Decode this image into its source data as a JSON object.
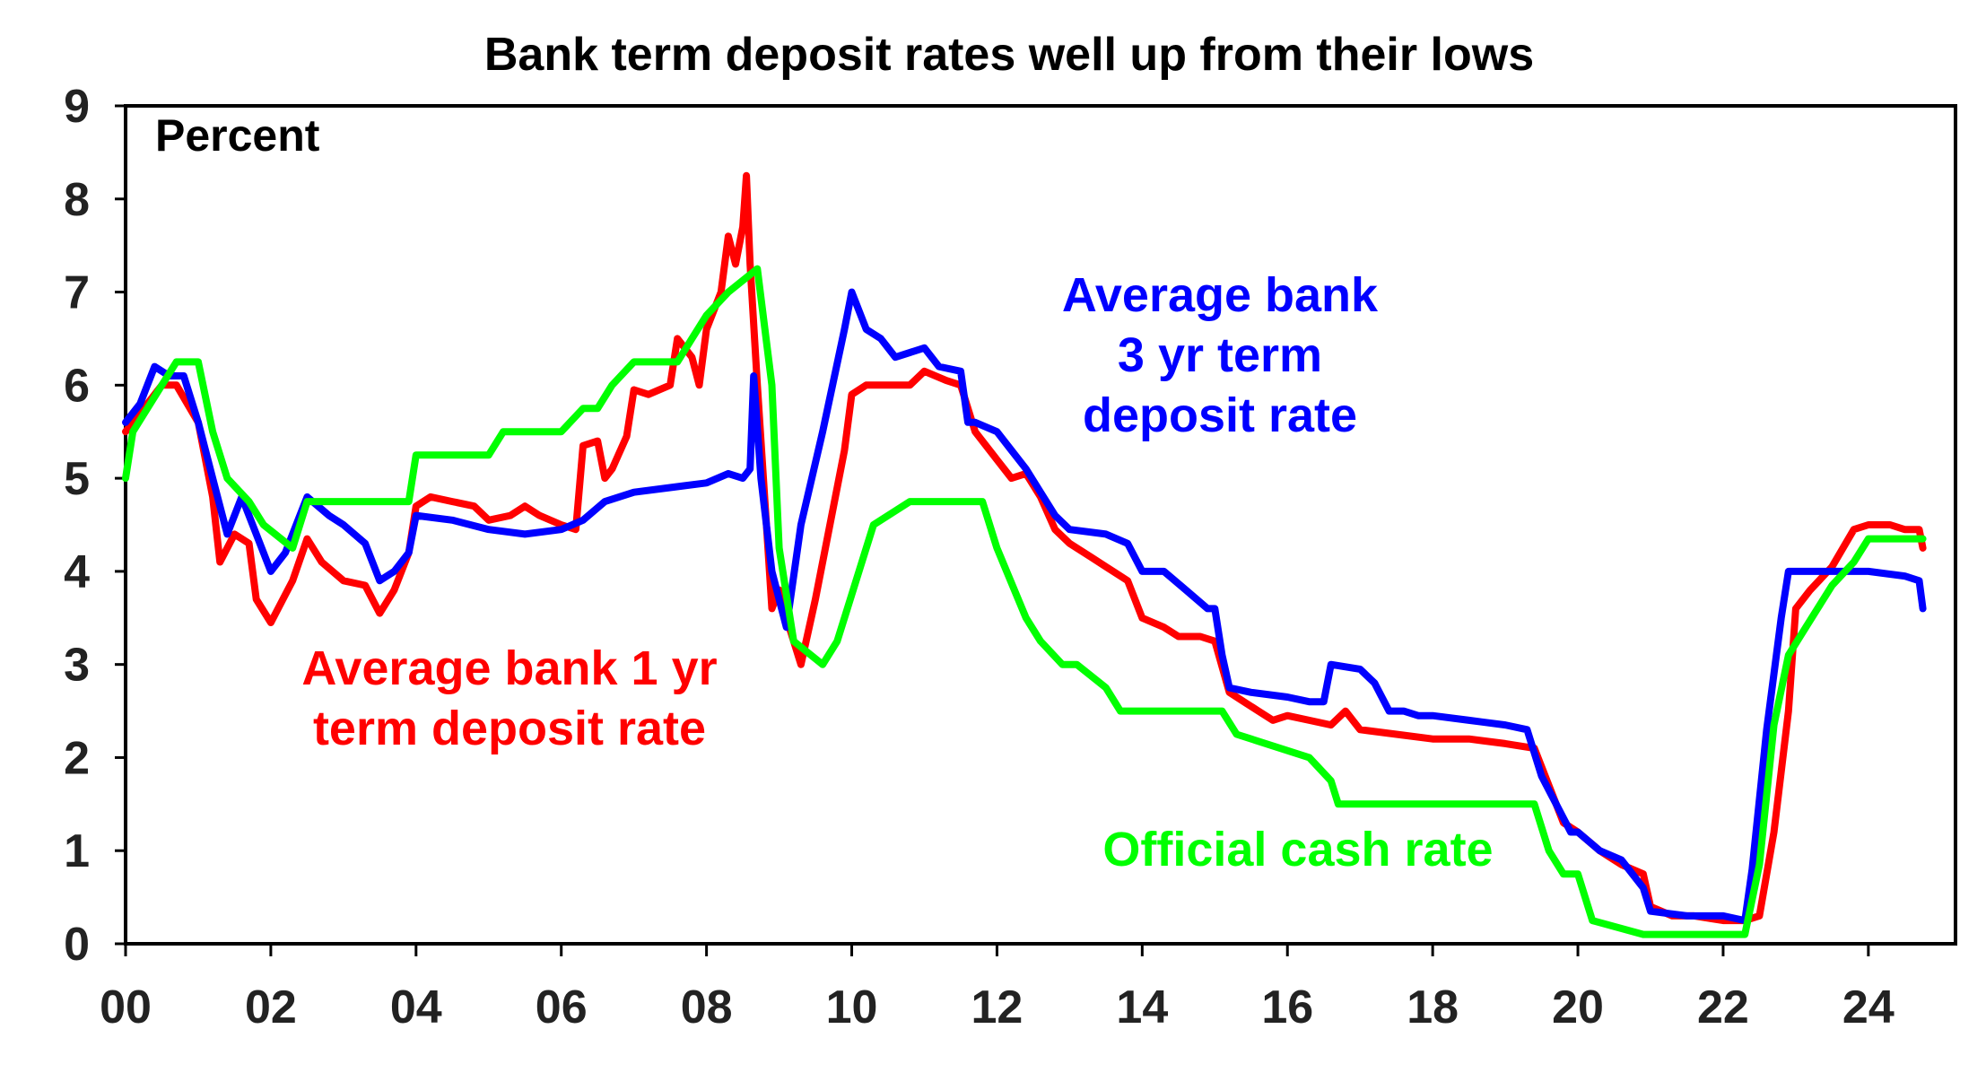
{
  "chart_data": {
    "type": "line",
    "title": "Bank term deposit rates well up from their lows",
    "unit_label": "Percent",
    "xlabel": "",
    "ylabel": "",
    "xlim": [
      2000,
      2025.2
    ],
    "ylim": [
      0,
      9
    ],
    "x_ticks": [
      0,
      2,
      4,
      6,
      8,
      10,
      12,
      14,
      16,
      18,
      20,
      22,
      24
    ],
    "x_tick_labels": [
      "00",
      "02",
      "04",
      "06",
      "08",
      "10",
      "12",
      "14",
      "16",
      "18",
      "20",
      "22",
      "24"
    ],
    "y_ticks": [
      0,
      1,
      2,
      3,
      4,
      5,
      6,
      7,
      8,
      9
    ],
    "y_tick_labels": [
      "0",
      "1",
      "2",
      "3",
      "4",
      "5",
      "6",
      "7",
      "8",
      "9"
    ],
    "grid": false,
    "series": [
      {
        "name": "Average bank 1 yr term deposit rate",
        "label_lines": [
          "Average bank 1 yr",
          "term deposit rate"
        ],
        "color": "#ff0000",
        "x": [
          2000.0,
          2000.3,
          2000.5,
          2000.7,
          2001.0,
          2001.2,
          2001.3,
          2001.5,
          2001.7,
          2001.8,
          2002.0,
          2002.2,
          2002.3,
          2002.5,
          2002.7,
          2003.0,
          2003.3,
          2003.5,
          2003.7,
          2003.9,
          2004.0,
          2004.2,
          2004.5,
          2004.8,
          2005.0,
          2005.3,
          2005.5,
          2005.7,
          2006.0,
          2006.2,
          2006.3,
          2006.5,
          2006.6,
          2006.7,
          2006.9,
          2007.0,
          2007.2,
          2007.5,
          2007.6,
          2007.8,
          2007.9,
          2008.0,
          2008.2,
          2008.3,
          2008.4,
          2008.5,
          2008.55,
          2008.6,
          2008.7,
          2008.9,
          2009.0,
          2009.1,
          2009.3,
          2009.5,
          2009.7,
          2009.9,
          2010.0,
          2010.2,
          2010.5,
          2010.8,
          2011.0,
          2011.3,
          2011.5,
          2011.7,
          2012.0,
          2012.2,
          2012.4,
          2012.6,
          2012.8,
          2013.0,
          2013.3,
          2013.5,
          2013.8,
          2014.0,
          2014.3,
          2014.5,
          2014.8,
          2015.0,
          2015.2,
          2015.4,
          2015.6,
          2015.8,
          2016.0,
          2016.3,
          2016.6,
          2016.8,
          2017.0,
          2017.5,
          2018.0,
          2018.5,
          2019.0,
          2019.4,
          2019.6,
          2019.8,
          2020.0,
          2020.3,
          2020.6,
          2020.9,
          2021.0,
          2021.3,
          2021.6,
          2022.0,
          2022.3,
          2022.5,
          2022.7,
          2022.9,
          2023.0,
          2023.2,
          2023.5,
          2023.8,
          2024.0,
          2024.3,
          2024.5,
          2024.7,
          2024.75
        ],
        "values": [
          5.5,
          5.8,
          6.0,
          6.0,
          5.6,
          4.8,
          4.1,
          4.4,
          4.3,
          3.7,
          3.45,
          3.75,
          3.9,
          4.35,
          4.1,
          3.9,
          3.85,
          3.55,
          3.8,
          4.2,
          4.7,
          4.8,
          4.75,
          4.7,
          4.55,
          4.6,
          4.7,
          4.6,
          4.5,
          4.45,
          5.35,
          5.4,
          5.0,
          5.1,
          5.45,
          5.95,
          5.9,
          6.0,
          6.5,
          6.3,
          6.0,
          6.6,
          7.0,
          7.6,
          7.3,
          7.7,
          8.25,
          7.3,
          6.0,
          3.6,
          3.8,
          3.5,
          3.0,
          3.7,
          4.5,
          5.3,
          5.9,
          6.0,
          6.0,
          6.0,
          6.15,
          6.05,
          6.0,
          5.5,
          5.2,
          5.0,
          5.05,
          4.8,
          4.45,
          4.3,
          4.15,
          4.05,
          3.9,
          3.5,
          3.4,
          3.3,
          3.3,
          3.25,
          2.7,
          2.6,
          2.5,
          2.4,
          2.45,
          2.4,
          2.35,
          2.5,
          2.3,
          2.25,
          2.2,
          2.2,
          2.15,
          2.1,
          1.7,
          1.3,
          1.2,
          1.0,
          0.85,
          0.75,
          0.4,
          0.3,
          0.3,
          0.25,
          0.25,
          0.3,
          1.2,
          2.5,
          3.6,
          3.8,
          4.05,
          4.45,
          4.5,
          4.5,
          4.45,
          4.45,
          4.25
        ]
      },
      {
        "name": "Average bank 3 yr term deposit rate",
        "label_lines": [
          "Average bank",
          "3 yr term",
          "deposit rate"
        ],
        "color": "#0000ff",
        "x": [
          2000.0,
          2000.2,
          2000.4,
          2000.6,
          2000.8,
          2001.0,
          2001.2,
          2001.4,
          2001.6,
          2001.8,
          2002.0,
          2002.2,
          2002.4,
          2002.5,
          2002.8,
          2003.0,
          2003.3,
          2003.5,
          2003.7,
          2003.9,
          2004.0,
          2004.5,
          2005.0,
          2005.5,
          2006.0,
          2006.3,
          2006.6,
          2007.0,
          2007.5,
          2008.0,
          2008.3,
          2008.5,
          2008.6,
          2008.65,
          2008.75,
          2008.9,
          2009.1,
          2009.3,
          2009.6,
          2009.9,
          2010.0,
          2010.2,
          2010.4,
          2010.6,
          2011.0,
          2011.2,
          2011.5,
          2011.6,
          2011.7,
          2012.0,
          2012.2,
          2012.4,
          2012.6,
          2012.8,
          2013.0,
          2013.5,
          2013.8,
          2014.0,
          2014.3,
          2014.6,
          2014.9,
          2015.0,
          2015.1,
          2015.2,
          2015.5,
          2016.0,
          2016.3,
          2016.5,
          2016.6,
          2017.0,
          2017.2,
          2017.4,
          2017.6,
          2017.8,
          2018.0,
          2018.5,
          2019.0,
          2019.3,
          2019.5,
          2019.7,
          2019.9,
          2020.0,
          2020.3,
          2020.6,
          2020.9,
          2021.0,
          2021.5,
          2022.0,
          2022.3,
          2022.4,
          2022.6,
          2022.8,
          2022.9,
          2023.0,
          2023.5,
          2024.0,
          2024.5,
          2024.7,
          2024.75
        ],
        "values": [
          5.6,
          5.8,
          6.2,
          6.1,
          6.1,
          5.6,
          5.0,
          4.4,
          4.8,
          4.4,
          4.0,
          4.2,
          4.6,
          4.8,
          4.6,
          4.5,
          4.3,
          3.9,
          4.0,
          4.2,
          4.6,
          4.55,
          4.45,
          4.4,
          4.45,
          4.55,
          4.75,
          4.85,
          4.9,
          4.95,
          5.05,
          5.0,
          5.1,
          6.1,
          5.0,
          4.0,
          3.4,
          4.5,
          5.5,
          6.6,
          7.0,
          6.6,
          6.5,
          6.3,
          6.4,
          6.2,
          6.15,
          5.6,
          5.6,
          5.5,
          5.3,
          5.1,
          4.85,
          4.6,
          4.45,
          4.4,
          4.3,
          4.0,
          4.0,
          3.8,
          3.6,
          3.6,
          3.1,
          2.75,
          2.7,
          2.65,
          2.6,
          2.6,
          3.0,
          2.95,
          2.8,
          2.5,
          2.5,
          2.45,
          2.45,
          2.4,
          2.35,
          2.3,
          1.8,
          1.5,
          1.2,
          1.2,
          1.0,
          0.9,
          0.6,
          0.35,
          0.3,
          0.3,
          0.25,
          0.8,
          2.3,
          3.5,
          4.0,
          4.0,
          4.0,
          4.0,
          3.95,
          3.9,
          3.6
        ]
      },
      {
        "name": "Official cash rate",
        "label_lines": [
          "Official cash rate"
        ],
        "color": "#00ff00",
        "x": [
          2000.0,
          2000.1,
          2000.3,
          2000.5,
          2000.7,
          2001.0,
          2001.2,
          2001.4,
          2001.7,
          2001.9,
          2002.3,
          2002.5,
          2003.0,
          2003.5,
          2003.9,
          2004.0,
          2005.0,
          2005.2,
          2006.0,
          2006.3,
          2006.5,
          2006.7,
          2007.0,
          2007.6,
          2007.8,
          2008.0,
          2008.3,
          2008.7,
          2008.9,
          2009.0,
          2009.2,
          2009.6,
          2009.8,
          2010.0,
          2010.3,
          2010.8,
          2011.0,
          2011.8,
          2012.0,
          2012.4,
          2012.6,
          2012.9,
          2013.1,
          2013.5,
          2013.7,
          2015.1,
          2015.3,
          2016.3,
          2016.6,
          2016.7,
          2019.4,
          2019.6,
          2019.8,
          2020.0,
          2020.2,
          2020.9,
          2022.3,
          2022.5,
          2022.7,
          2022.9,
          2023.1,
          2023.3,
          2023.5,
          2023.8,
          2024.0,
          2024.75
        ],
        "values": [
          5.0,
          5.5,
          5.75,
          6.0,
          6.25,
          6.25,
          5.5,
          5.0,
          4.75,
          4.5,
          4.25,
          4.75,
          4.75,
          4.75,
          4.75,
          5.25,
          5.25,
          5.5,
          5.5,
          5.75,
          5.75,
          6.0,
          6.25,
          6.25,
          6.5,
          6.75,
          7.0,
          7.25,
          6.0,
          4.25,
          3.25,
          3.0,
          3.25,
          3.75,
          4.5,
          4.75,
          4.75,
          4.75,
          4.25,
          3.5,
          3.25,
          3.0,
          3.0,
          2.75,
          2.5,
          2.5,
          2.25,
          2.0,
          1.75,
          1.5,
          1.5,
          1.0,
          0.75,
          0.75,
          0.25,
          0.1,
          0.1,
          0.85,
          2.35,
          3.1,
          3.35,
          3.6,
          3.85,
          4.1,
          4.35,
          4.35
        ]
      }
    ]
  }
}
